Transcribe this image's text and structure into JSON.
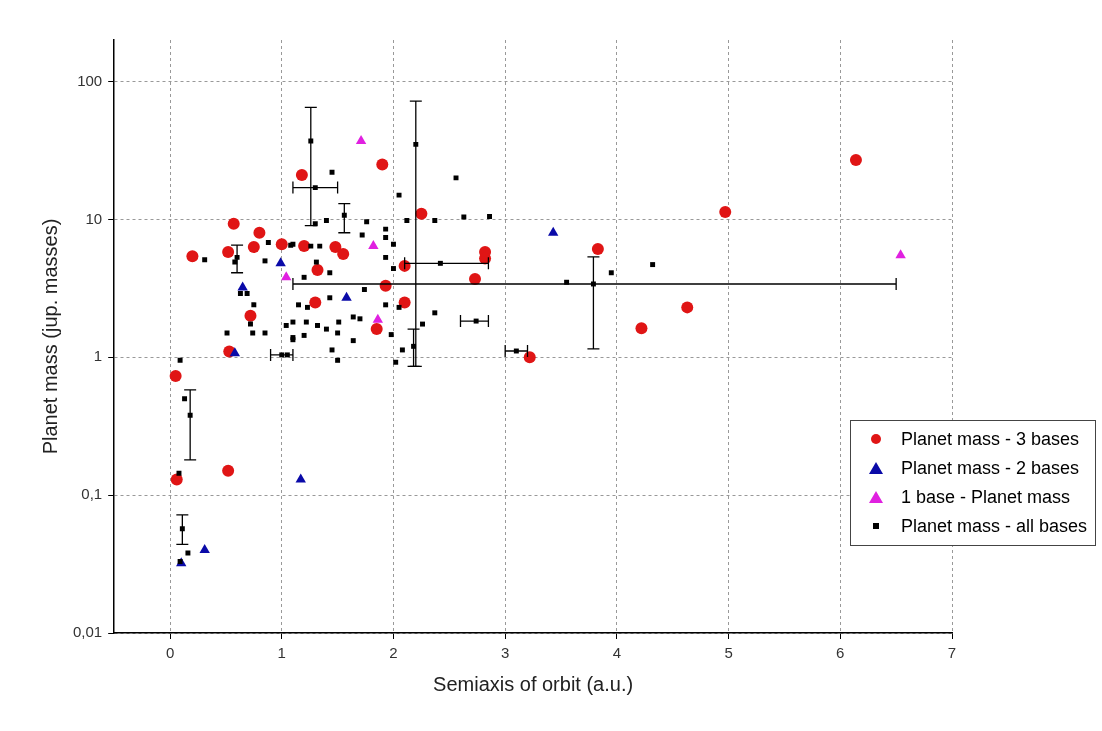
{
  "chart_data": {
    "type": "scatter",
    "xlabel": "Semiaxis of orbit (a.u.)",
    "ylabel": "Planet mass (jup. masses)",
    "xlim": [
      -0.5,
      7
    ],
    "xticks": [
      0,
      1,
      2,
      3,
      4,
      5,
      6,
      7
    ],
    "ylim": [
      0.01,
      200
    ],
    "yticks": [
      {
        "value": 0.01,
        "label": "0,01"
      },
      {
        "value": 0.1,
        "label": "0,1"
      },
      1,
      10,
      100
    ],
    "log": "y",
    "grid": true,
    "legend": "right",
    "series": [
      {
        "name": "Planet mass - 3 bases",
        "color": "#e01515",
        "marker": "circle",
        "x": [
          0.05,
          0.06,
          0.2,
          0.52,
          0.57,
          0.53,
          0.52,
          0.8,
          0.75,
          0.72,
          1.0,
          1.18,
          1.2,
          1.32,
          1.3,
          1.48,
          1.55,
          1.9,
          2.25,
          2.1,
          1.93,
          2.1,
          1.85,
          2.82,
          2.82,
          2.73,
          3.22,
          4.97,
          3.83,
          6.14,
          4.22,
          4.63
        ],
        "values": [
          0.73,
          0.13,
          5.4,
          5.8,
          9.3,
          1.1,
          0.15,
          8.0,
          6.3,
          2.0,
          6.6,
          21,
          6.4,
          4.3,
          2.5,
          6.3,
          5.6,
          25,
          11,
          4.6,
          3.3,
          2.5,
          1.6,
          5.8,
          5.2,
          3.7,
          1.0,
          11.3,
          6.1,
          27,
          1.62,
          2.3
        ]
      },
      {
        "name": "Planet mass - 2 bases",
        "color": "#0a0aa8",
        "marker": "triangle",
        "x": [
          0.1,
          0.31,
          0.58,
          0.65,
          0.99,
          1.17,
          1.58,
          3.43
        ],
        "values": [
          0.032,
          0.04,
          1.07,
          3.2,
          4.8,
          0.13,
          2.7,
          8.0
        ]
      },
      {
        "name": "1 base - Planet mass",
        "color": "#e020e0",
        "marker": "triangle",
        "x": [
          1.71,
          1.82,
          1.04,
          1.86,
          6.54
        ],
        "values": [
          37,
          6.4,
          3.8,
          1.87,
          5.5
        ]
      },
      {
        "name": "Planet mass - all bases",
        "color": "#000000",
        "marker": "square",
        "x": [
          1.26,
          2.2,
          1.3,
          1.56,
          2.42,
          2.18,
          1.0,
          0.6,
          0.18,
          0.11,
          3.79,
          2.74,
          3.1,
          1.45,
          1.3,
          1.4,
          1.76,
          2.12,
          2.37,
          1.72,
          1.93,
          1.93,
          2.0,
          2.05,
          2.56,
          1.26,
          1.1,
          1.34,
          1.31,
          1.43,
          1.2,
          1.93,
          2.0,
          1.74,
          1.43,
          1.15,
          1.23,
          1.1,
          1.22,
          1.32,
          1.51,
          1.64,
          1.7,
          1.93,
          2.05,
          2.26,
          2.37,
          1.1,
          1.2,
          1.4,
          1.5,
          1.64,
          1.45,
          1.5,
          1.98,
          2.08,
          2.02,
          1.05,
          0.31,
          0.58,
          0.85,
          0.88,
          1.08,
          0.69,
          0.75,
          0.72,
          0.51,
          0.74,
          0.85,
          0.63,
          0.09,
          1.04,
          1.1,
          0.08,
          0.13,
          0.16,
          0.09,
          2.63,
          3.55,
          3.95,
          4.32,
          2.86
        ],
        "values": [
          37,
          35,
          17,
          10.7,
          4.8,
          1.2,
          1.04,
          5.3,
          0.38,
          0.057,
          3.4,
          1.83,
          1.11,
          22,
          9.3,
          9.8,
          9.6,
          9.8,
          9.8,
          7.7,
          8.5,
          7.4,
          6.6,
          15,
          20,
          6.4,
          6.6,
          6.4,
          4.9,
          4.1,
          3.8,
          5.3,
          4.4,
          3.1,
          2.7,
          2.4,
          2.3,
          1.8,
          1.8,
          1.7,
          1.8,
          1.96,
          1.9,
          2.4,
          2.3,
          1.74,
          2.1,
          1.39,
          1.44,
          1.6,
          1.5,
          1.32,
          1.13,
          0.95,
          1.46,
          1.13,
          0.92,
          1.04,
          5.1,
          4.9,
          5.0,
          6.8,
          6.5,
          2.9,
          2.4,
          1.74,
          1.5,
          1.5,
          1.5,
          2.9,
          0.95,
          1.7,
          1.34,
          0.144,
          0.5,
          0.038,
          0.033,
          10.4,
          3.5,
          4.1,
          4.7,
          10.5
        ],
        "errors": [
          [
            9,
            65
          ],
          [
            0.86,
            72
          ],
          null,
          [
            8,
            13
          ],
          null,
          [
            0.86,
            1.6
          ],
          null,
          [
            4.1,
            6.5
          ],
          [
            0.18,
            0.58
          ],
          [
            0.044,
            0.072
          ],
          [
            1.15,
            5.35
          ],
          null,
          null,
          null,
          null,
          null,
          null,
          null,
          null,
          null,
          null,
          null,
          null,
          null,
          null,
          null,
          null,
          null,
          null,
          null,
          null,
          null,
          null,
          null,
          null,
          null,
          null,
          null,
          null,
          null,
          null,
          null,
          null,
          null,
          null,
          null,
          null,
          null,
          null,
          null,
          null,
          null,
          null,
          null,
          null,
          null,
          null,
          null,
          null,
          null,
          null,
          null,
          null,
          null,
          null,
          null,
          null,
          null,
          null,
          null,
          null,
          null,
          null,
          null,
          null,
          null,
          null,
          null,
          null,
          null,
          null,
          null
        ],
        "xerrors": [
          null,
          null,
          [
            1.1,
            1.5
          ],
          null,
          [
            2.1,
            2.85
          ],
          null,
          [
            0.9,
            1.1
          ],
          null,
          null,
          null,
          [
            1.1,
            6.5
          ],
          [
            2.6,
            2.85
          ],
          [
            3.0,
            3.2
          ],
          null,
          null,
          null,
          null,
          null,
          null,
          null,
          null,
          null,
          null,
          null,
          null,
          null,
          null,
          null,
          null,
          null,
          null,
          null,
          null,
          null,
          null,
          null,
          null,
          null,
          null,
          null,
          null,
          null,
          null,
          null,
          null,
          null,
          null,
          null,
          null,
          null,
          null,
          null,
          null,
          null,
          null,
          null,
          null,
          null,
          null,
          null,
          null,
          null,
          null,
          null,
          null,
          null,
          null,
          null,
          null,
          null,
          null,
          null,
          null,
          null,
          null,
          null,
          null,
          null,
          null,
          null,
          null,
          null
        ]
      }
    ]
  }
}
